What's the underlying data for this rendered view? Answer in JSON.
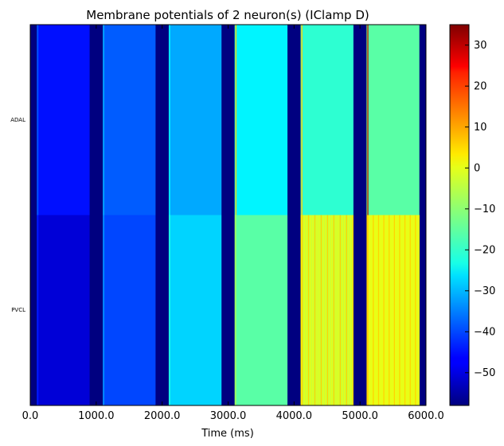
{
  "chart_data": {
    "type": "heatmap",
    "title": "Membrane potentials of 2 neuron(s) (IClamp D)",
    "xlabel": "Time (ms)",
    "ylabel": "",
    "xlim": [
      0,
      6000
    ],
    "x_ticks": [
      0,
      1000,
      2000,
      3000,
      4000,
      5000,
      6000
    ],
    "x_tick_labels": [
      "0.0",
      "1000.0",
      "2000.0",
      "3000.0",
      "4000.0",
      "5000.0",
      "6000.0"
    ],
    "rows": [
      "ADAL",
      "PVCL"
    ],
    "colorbar": {
      "colormap": "jet",
      "vmin": -58,
      "vmax": 35,
      "ticks": [
        -50,
        -40,
        -30,
        -20,
        -10,
        0,
        10,
        20,
        30
      ],
      "tick_labels": [
        "−50",
        "−40",
        "−30",
        "−20",
        "−10",
        "0",
        "10",
        "20",
        "30"
      ]
    },
    "baseline_mV": -58,
    "pulses": [
      {
        "start": 100,
        "end": 900,
        "ADAL": -45,
        "PVCL": -50,
        "PVCL_spiking": false
      },
      {
        "start": 1100,
        "end": 1900,
        "ADAL": -38,
        "PVCL": -40,
        "PVCL_spiking": false
      },
      {
        "start": 2100,
        "end": 2900,
        "ADAL": -31,
        "PVCL": -27,
        "PVCL_spiking": false
      },
      {
        "start": 3100,
        "end": 3900,
        "ADAL": -24,
        "PVCL": -15,
        "PVCL_spiking": true,
        "PVCL_spike_count": 1
      },
      {
        "start": 4100,
        "end": 4900,
        "ADAL": -19,
        "PVCL": -5,
        "PVCL_spiking": true,
        "PVCL_spike_count": 25
      },
      {
        "start": 5100,
        "end": 5900,
        "ADAL": -15,
        "PVCL": -2,
        "PVCL_spiking": true,
        "PVCL_spike_count": 30
      }
    ]
  }
}
